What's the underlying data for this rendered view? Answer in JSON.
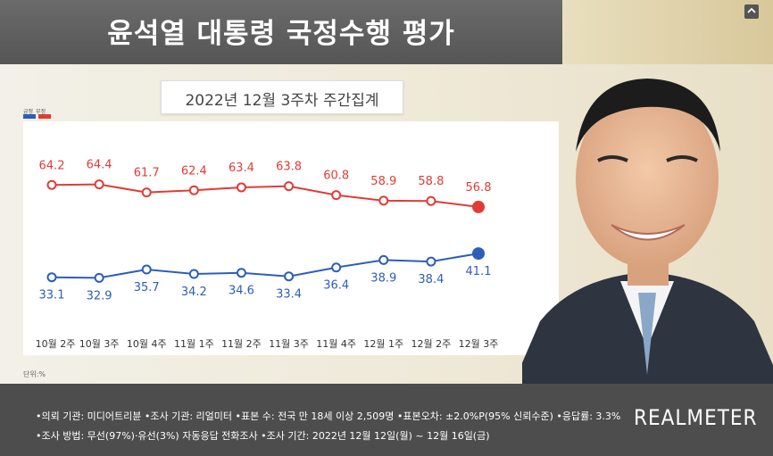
{
  "title": "윤석열 대통령 국정수행 평가",
  "subtitle": "2022년 12월 3주차 주간집계",
  "unit_label": "단위:%",
  "legend": {
    "approve": "긍정",
    "disapprove": "부정"
  },
  "colors": {
    "approve": "#2b5fb8",
    "disapprove": "#e23b35",
    "title_bg": "#5f5f5f",
    "footer_bg": "#4d4d4d"
  },
  "chart_data": {
    "type": "line",
    "categories": [
      "10월 2주",
      "10월 3주",
      "10월 4주",
      "11월 1주",
      "11월 2주",
      "11월 3주",
      "11월 4주",
      "12월 1주",
      "12월 2주",
      "12월 3주"
    ],
    "series": [
      {
        "name": "부정",
        "values": [
          64.2,
          64.4,
          61.7,
          62.4,
          63.4,
          63.8,
          60.8,
          58.9,
          58.8,
          56.8
        ]
      },
      {
        "name": "긍정",
        "values": [
          33.1,
          32.9,
          35.7,
          34.2,
          34.6,
          33.4,
          36.4,
          38.9,
          38.4,
          41.1
        ]
      }
    ],
    "grid": false
  },
  "footer": {
    "line1": "•의뢰 기관: 미디어트리뷴 •조사 기관: 리얼미터 •표본 수: 전국 만 18세 이상 2,509명 •표본오차: ±2.0%P(95% 신뢰수준) •응답률: 3.3%",
    "line2": "•조사 방법: 무선(97%)·유선(3%) 자동응답 전화조사 •조사 기간: 2022년 12월 12일(월) ~ 12월 16일(금)",
    "brand": "REALMETER"
  },
  "icons": {
    "corner": "share-icon",
    "photo": "president-portrait"
  }
}
